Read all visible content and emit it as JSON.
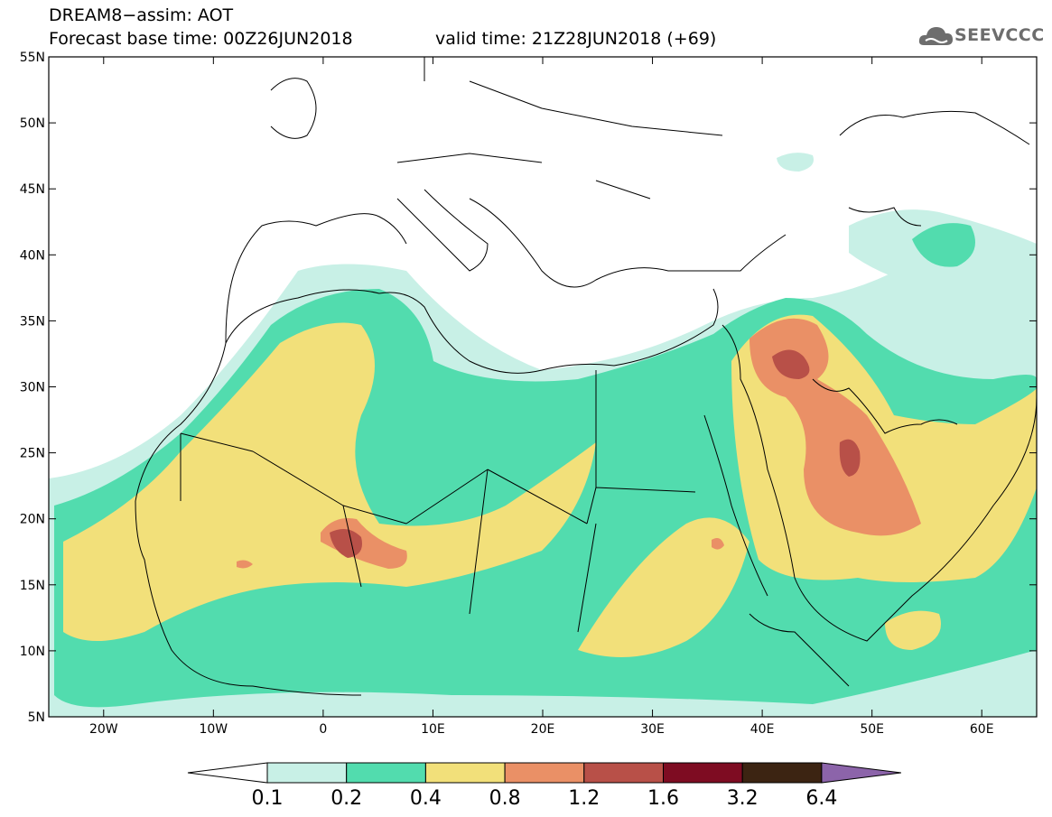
{
  "title": {
    "line1": "DREAM8−assim: AOT",
    "line2": "Forecast base time: 00Z26JUN2018",
    "line3": "valid time: 21Z28JUN2018 (+69)"
  },
  "logo": {
    "text": "SEEVCCC",
    "icon": "cloud-logo-icon"
  },
  "map": {
    "lon_range": [
      -25,
      65
    ],
    "lat_range": [
      5,
      55
    ],
    "lat_ticks": [
      "5N",
      "10N",
      "15N",
      "20N",
      "25N",
      "30N",
      "35N",
      "40N",
      "45N",
      "50N",
      "55N"
    ],
    "lat_values": [
      5,
      10,
      15,
      20,
      25,
      30,
      35,
      40,
      45,
      50,
      55
    ],
    "lon_ticks": [
      "20W",
      "10W",
      "0",
      "10E",
      "20E",
      "30E",
      "40E",
      "50E",
      "60E"
    ],
    "lon_values": [
      -20,
      -10,
      0,
      10,
      20,
      30,
      40,
      50,
      60
    ]
  },
  "colorbar": {
    "labels": [
      "0.1",
      "0.2",
      "0.4",
      "0.8",
      "1.2",
      "1.6",
      "3.2",
      "6.4"
    ],
    "colors": [
      "#ffffff",
      "#c8f0e6",
      "#52dcae",
      "#f2e07a",
      "#ea9066",
      "#b85048",
      "#7e0c22",
      "#3c2412",
      "#8c64aa"
    ]
  }
}
